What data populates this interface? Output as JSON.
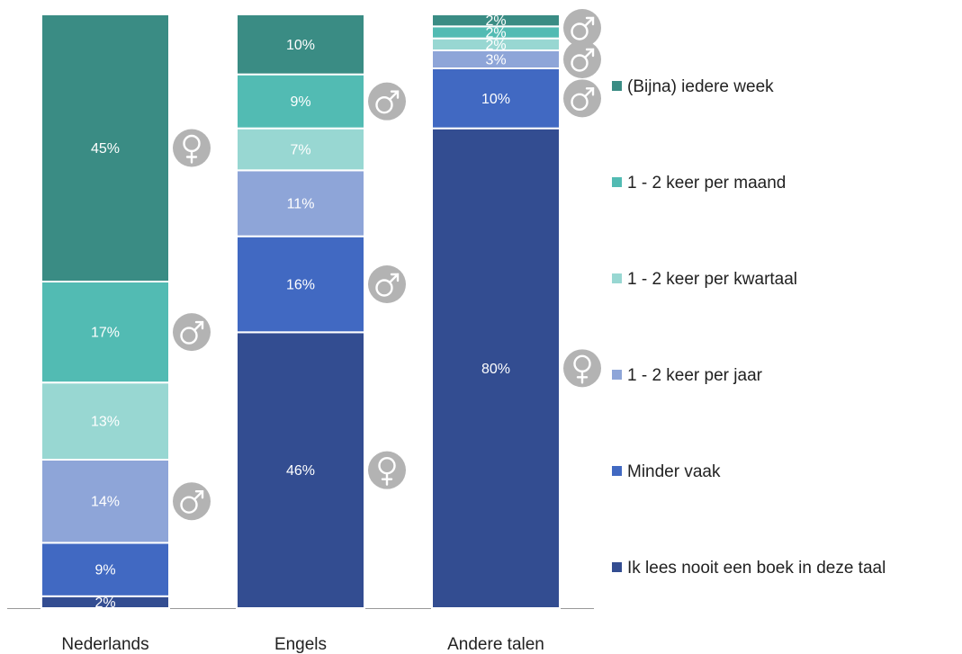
{
  "chart_data": {
    "type": "bar",
    "stacked": true,
    "normalized": true,
    "categories": [
      "Nederlands",
      "Engels",
      "Andere talen"
    ],
    "series": [
      {
        "name": "(Bijna) iedere week",
        "color": "#3a8c84",
        "values": [
          45,
          10,
          2
        ]
      },
      {
        "name": "1 - 2 keer per maand",
        "color": "#52bbb3",
        "values": [
          17,
          9,
          2
        ]
      },
      {
        "name": "1 - 2 keer per kwartaal",
        "color": "#98d7d2",
        "values": [
          13,
          7,
          2
        ]
      },
      {
        "name": "1 - 2 keer per jaar",
        "color": "#8ea5d8",
        "values": [
          14,
          11,
          3
        ]
      },
      {
        "name": "Minder vaak",
        "color": "#4169c2",
        "values": [
          9,
          16,
          10
        ]
      },
      {
        "name": "Ik lees nooit een boek in deze taal",
        "color": "#334d91",
        "values": [
          2,
          46,
          80
        ]
      }
    ],
    "gender_markers": [
      {
        "category": "Nederlands",
        "series": "(Bijna) iedere week",
        "symbol": "♀"
      },
      {
        "category": "Nederlands",
        "series": "1 - 2 keer per maand",
        "symbol": "♂"
      },
      {
        "category": "Nederlands",
        "series": "1 - 2 keer per jaar",
        "symbol": "♂"
      },
      {
        "category": "Engels",
        "series": "1 - 2 keer per maand",
        "symbol": "♂"
      },
      {
        "category": "Engels",
        "series": "Minder vaak",
        "symbol": "♂"
      },
      {
        "category": "Engels",
        "series": "Ik lees nooit een boek in deze taal",
        "symbol": "♀"
      },
      {
        "category": "Andere talen",
        "series": "(Bijna) iedere week",
        "symbol": "♂"
      },
      {
        "category": "Andere talen",
        "series": "1 - 2 keer per jaar",
        "symbol": "♂"
      },
      {
        "category": "Andere talen",
        "series": "Minder vaak",
        "symbol": "♂"
      },
      {
        "category": "Andere talen",
        "series": "Ik lees nooit een boek in deze taal",
        "symbol": "♀"
      }
    ],
    "value_suffix": "%",
    "legend_position": "right",
    "grid": false
  }
}
